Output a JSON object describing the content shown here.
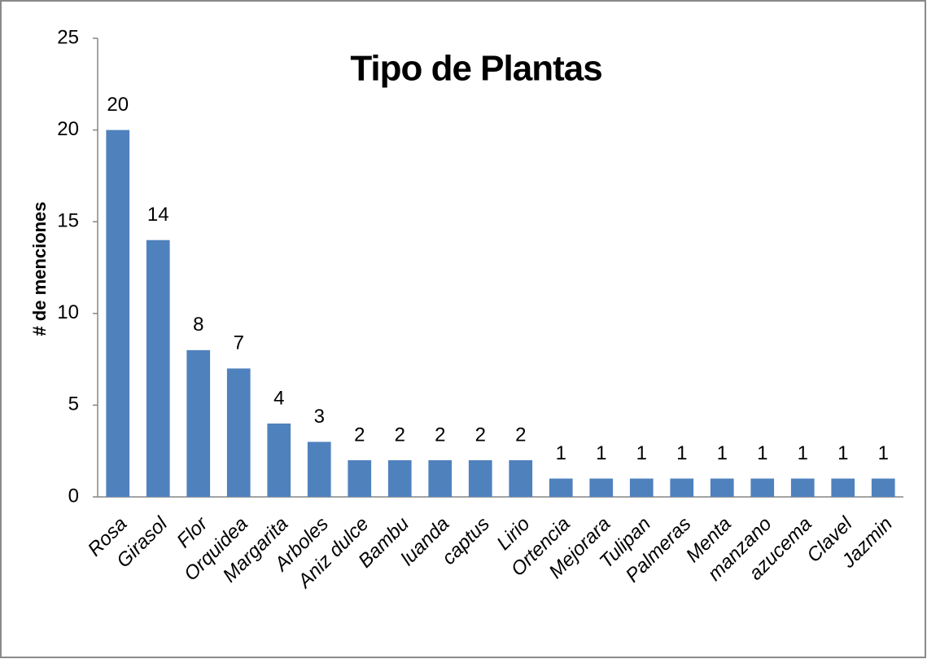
{
  "chart_data": {
    "type": "bar",
    "title": "Tipo de Plantas",
    "y_label": "# de menciones",
    "categories": [
      "Rosa",
      "Girasol",
      "Flor",
      "Orquidea",
      "Margarita",
      "Arboles",
      "Aniz dulce",
      "Bambu",
      "luanda",
      "captus",
      "Lirio",
      "Ortencia",
      "Mejorara",
      "Tulipan",
      "Palmeras",
      "Menta",
      "manzano",
      "azucema",
      "Clavel",
      "Jazmin"
    ],
    "values": [
      20,
      14,
      8,
      7,
      4,
      3,
      2,
      2,
      2,
      2,
      2,
      1,
      1,
      1,
      1,
      1,
      1,
      1,
      1,
      1
    ],
    "color": "#4f81bd",
    "ylim": [
      0,
      25
    ],
    "yticks": [
      0,
      5,
      10,
      15,
      20,
      25
    ],
    "grid": false,
    "data_labels": true
  }
}
